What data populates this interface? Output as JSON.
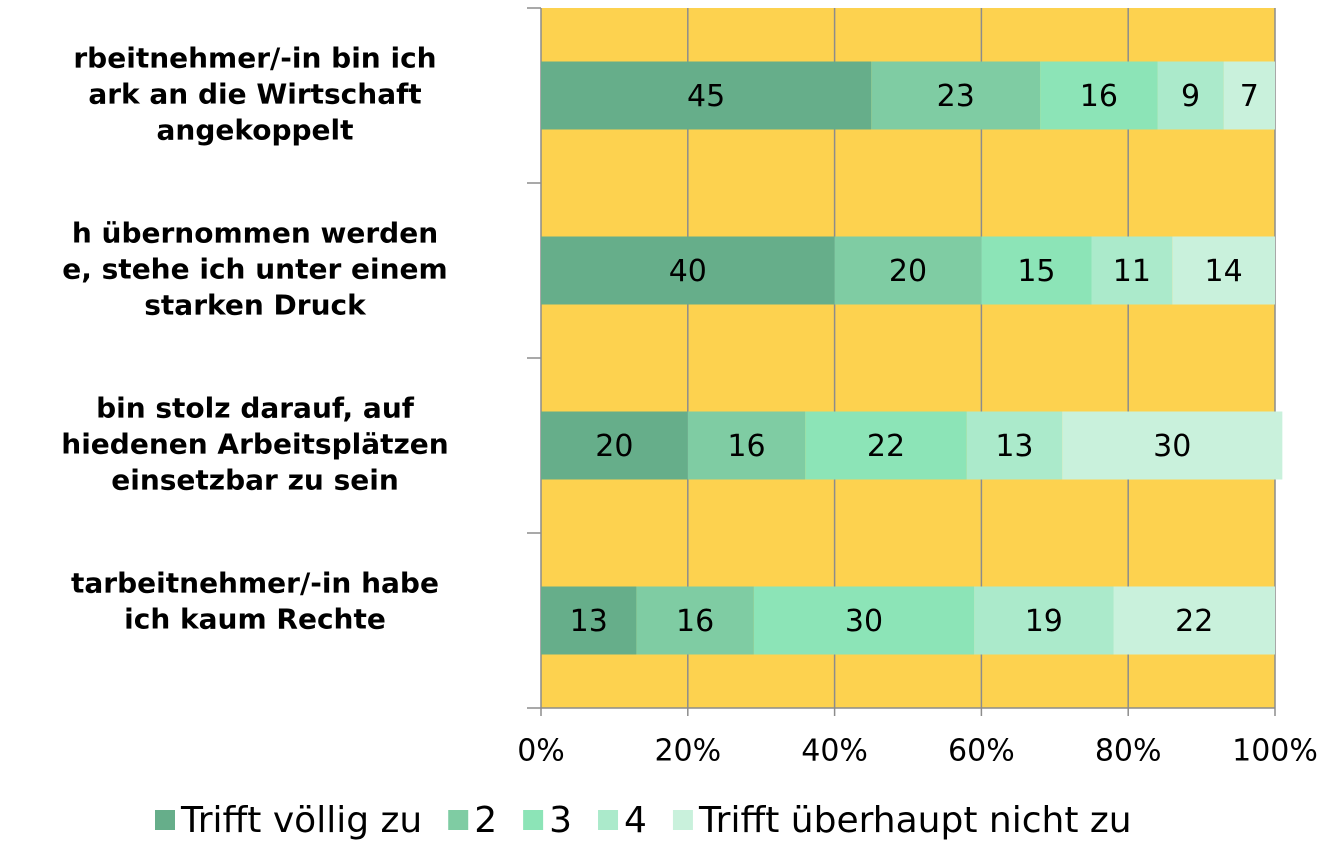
{
  "chart_data": {
    "type": "stacked-bar-horizontal",
    "categories": [
      [
        "rbeitnehmer/-in bin ich",
        "ark an die Wirtschaft",
        "angekoppelt"
      ],
      [
        "h übernommen werden",
        "e, stehe ich unter einem",
        "starken Druck"
      ],
      [
        "bin stolz darauf, auf",
        "hiedenen Arbeitsplätzen",
        "einsetzbar zu sein"
      ],
      [
        "tarbeitnehmer/-in habe",
        "ich kaum Rechte"
      ]
    ],
    "series": [
      {
        "name": "Trifft völlig zu",
        "color": "#66ae8a",
        "values": [
          45,
          40,
          20,
          13
        ]
      },
      {
        "name": "2",
        "color": "#7fcca3",
        "values": [
          23,
          20,
          16,
          16
        ]
      },
      {
        "name": "3",
        "color": "#8ce4b7",
        "values": [
          16,
          15,
          22,
          30
        ]
      },
      {
        "name": "4",
        "color": "#abeacb",
        "values": [
          9,
          11,
          13,
          19
        ]
      },
      {
        "name": "Trifft überhaupt nicht zu",
        "color": "#c9f1dc",
        "values": [
          7,
          14,
          30,
          22
        ]
      }
    ],
    "xlim": [
      0,
      100
    ],
    "xticks": [
      {
        "value": 0,
        "label": "0%"
      },
      {
        "value": 20,
        "label": "20%"
      },
      {
        "value": 40,
        "label": "40%"
      },
      {
        "value": 60,
        "label": "60%"
      },
      {
        "value": 80,
        "label": "80%"
      },
      {
        "value": 100,
        "label": "100%"
      }
    ],
    "background": "#fdd24f",
    "grid": true,
    "legend": "bottom"
  }
}
